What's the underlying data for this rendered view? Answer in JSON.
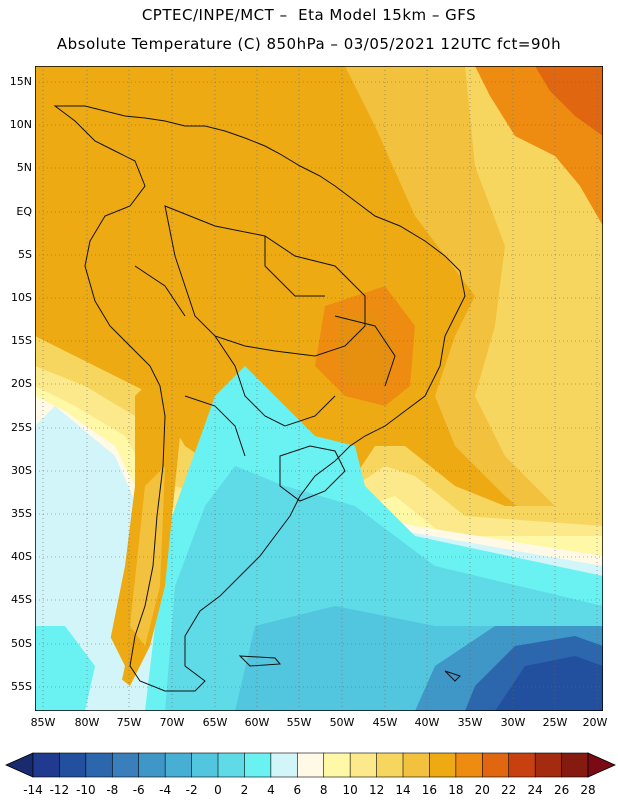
{
  "header": {
    "line1": "CPTEC/INPE/MCT –  Eta Model 15km – GFS",
    "line2": "Absolute Temperature (C) 850hPa – 03/05/2021 12UTC fct=90h"
  },
  "map": {
    "lat_labels": [
      "15N",
      "10N",
      "5N",
      "EQ",
      "5S",
      "10S",
      "15S",
      "20S",
      "25S",
      "30S",
      "35S",
      "40S",
      "45S",
      "50S",
      "55S"
    ],
    "lon_labels": [
      "85W",
      "80W",
      "75W",
      "70W",
      "65W",
      "60W",
      "55W",
      "50W",
      "45W",
      "40W",
      "35W",
      "30W",
      "25W",
      "20W"
    ]
  },
  "colorbar": {
    "labels": [
      "-14",
      "-12",
      "-10",
      "-8",
      "-6",
      "-4",
      "-2",
      "0",
      "2",
      "4",
      "6",
      "8",
      "10",
      "12",
      "14",
      "16",
      "18",
      "20",
      "22",
      "24",
      "26",
      "28"
    ],
    "colors": [
      "#1f3a8f",
      "#23509e",
      "#2c66ad",
      "#3a7fbc",
      "#3f97c8",
      "#47afd4",
      "#52c6de",
      "#5fdbe8",
      "#6af2f2",
      "#d2f5fa",
      "#fff9e6",
      "#fff8a6",
      "#fbe98c",
      "#f7d660",
      "#f2c23f",
      "#eeaa12",
      "#ee8c12",
      "#e06610",
      "#c84010",
      "#a42a10",
      "#841a10"
    ],
    "under_color": "#1a2a6e",
    "over_color": "#7a0a14"
  }
}
